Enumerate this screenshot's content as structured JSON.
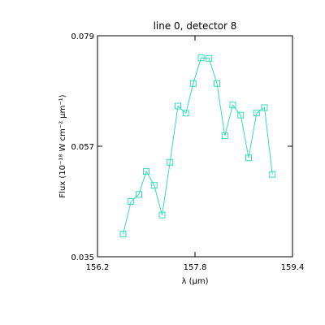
{
  "chart_data": {
    "type": "line",
    "title": "line 0, detector 8",
    "xlabel": "λ (μm)",
    "ylabel": "Flux (10⁻¹⁸ W cm⁻² μm⁻¹)",
    "xlim": [
      156.2,
      159.4
    ],
    "ylim": [
      0.035,
      0.079
    ],
    "x_ticks": [
      "156.2",
      "157.8",
      "159.4"
    ],
    "y_ticks": [
      "0.035",
      "0.057",
      "0.079"
    ],
    "grid": false,
    "series": [
      {
        "marker": "square",
        "color": "#33ddbb",
        "x": [
          156.62,
          156.75,
          156.88,
          157.0,
          157.13,
          157.26,
          157.39,
          157.52,
          157.65,
          157.77,
          157.9,
          158.03,
          158.16,
          158.29,
          158.42,
          158.55,
          158.68,
          158.81,
          158.94,
          159.07
        ],
        "y": [
          0.0395,
          0.046,
          0.0474,
          0.052,
          0.0492,
          0.0433,
          0.0538,
          0.065,
          0.0636,
          0.0695,
          0.0746,
          0.0745,
          0.0695,
          0.0591,
          0.0652,
          0.0632,
          0.0547,
          0.0636,
          0.0647,
          0.0514
        ]
      }
    ]
  }
}
